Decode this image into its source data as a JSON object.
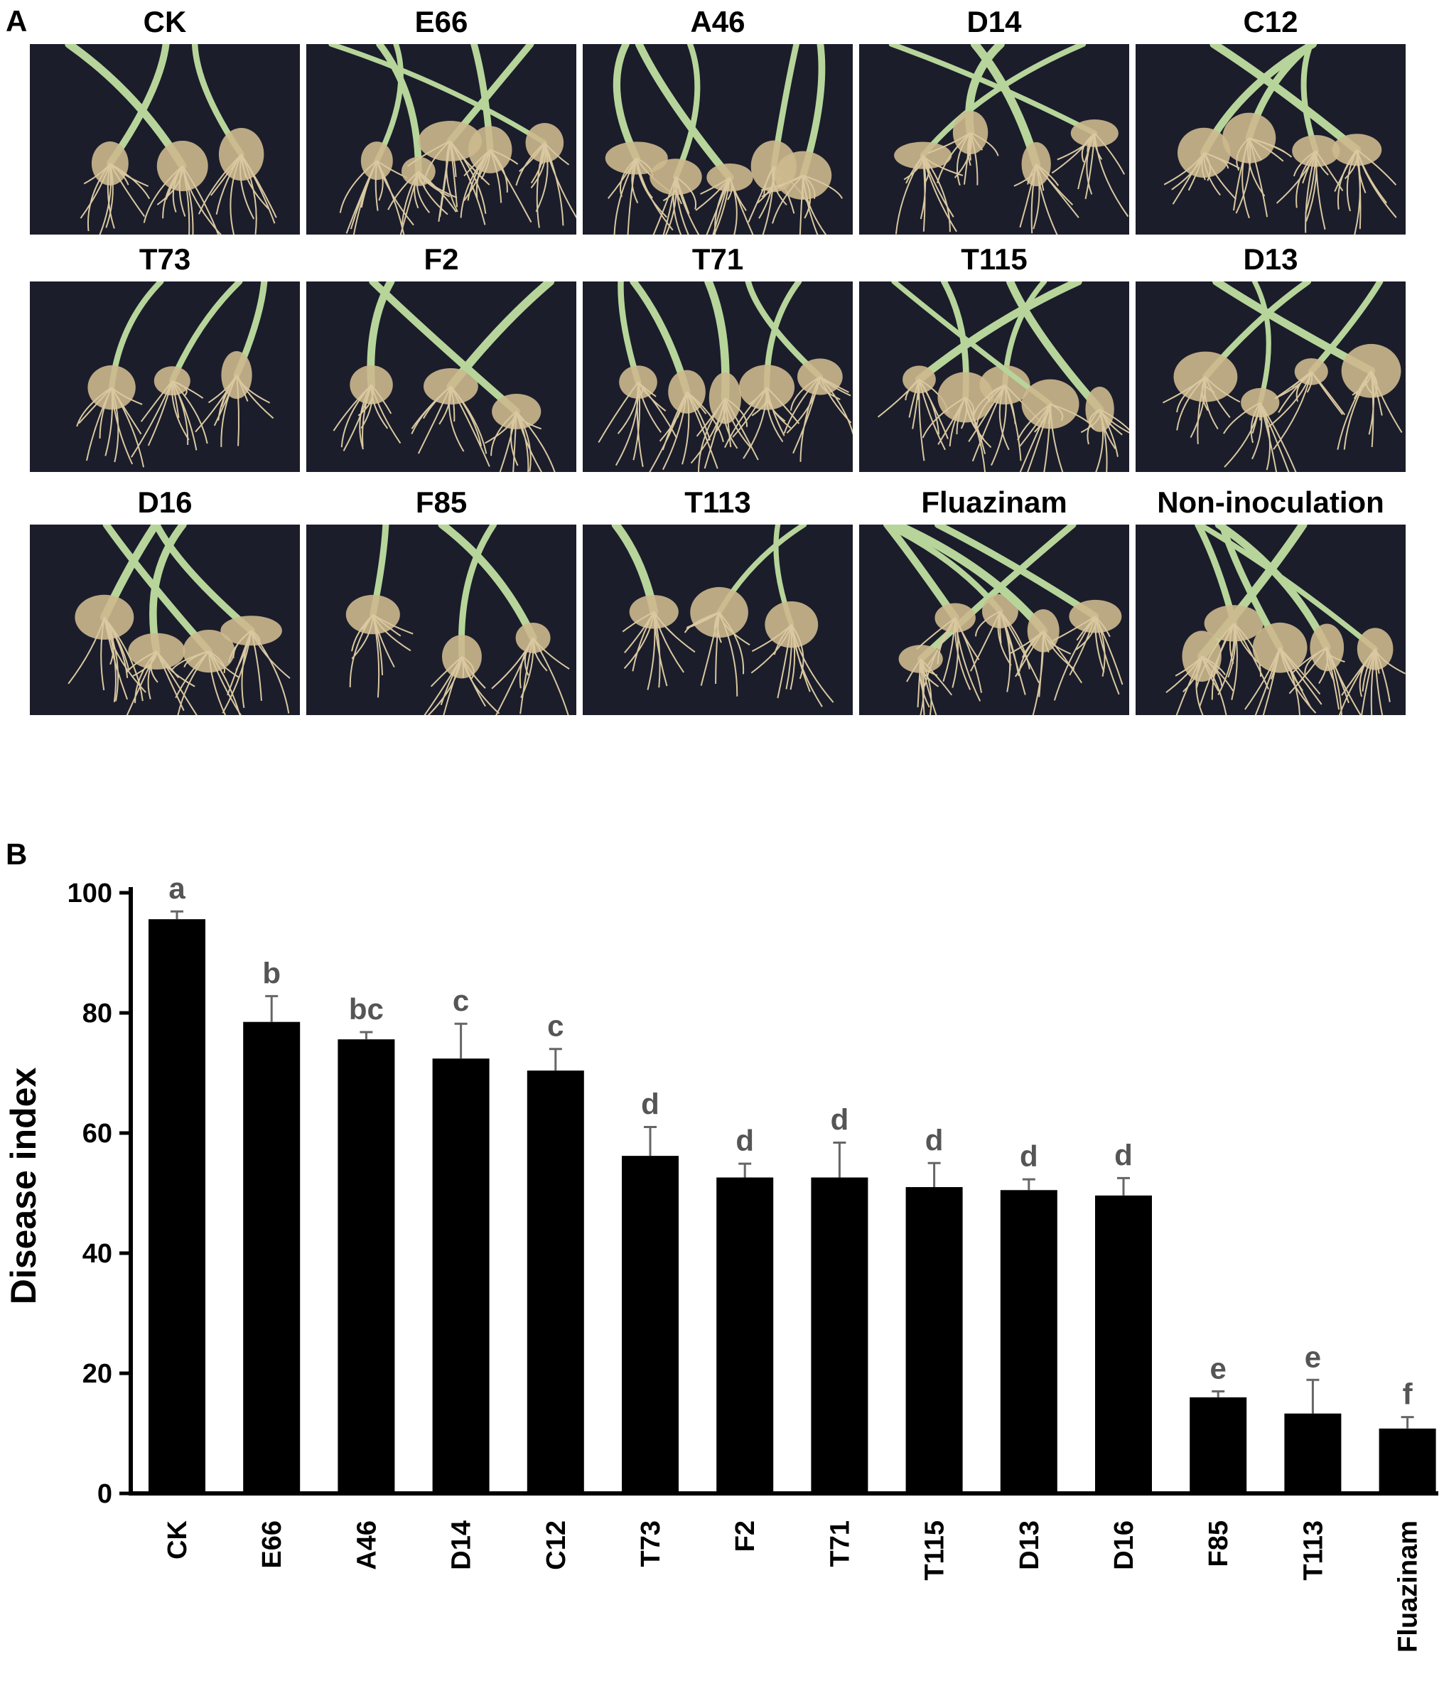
{
  "panel_a": {
    "letter": "A",
    "photos": [
      {
        "label": "CK"
      },
      {
        "label": "E66"
      },
      {
        "label": "A46"
      },
      {
        "label": "D14"
      },
      {
        "label": "C12"
      },
      {
        "label": "T73"
      },
      {
        "label": "F2"
      },
      {
        "label": "T71"
      },
      {
        "label": "T115"
      },
      {
        "label": "D13"
      },
      {
        "label": "D16"
      },
      {
        "label": "F85"
      },
      {
        "label": "T113"
      },
      {
        "label": "Fluazinam"
      },
      {
        "label": "Non-inoculation"
      }
    ]
  },
  "panel_b": {
    "letter": "B"
  },
  "chart_data": {
    "type": "bar",
    "title": "",
    "xlabel": "",
    "ylabel": "Disease index",
    "ylim": [
      0,
      100
    ],
    "yticks": [
      0,
      20,
      40,
      60,
      80,
      100
    ],
    "categories": [
      "CK",
      "E66",
      "A46",
      "D14",
      "C12",
      "T73",
      "F2",
      "T71",
      "T115",
      "D13",
      "D16",
      "F85",
      "T113",
      "Fluazinam"
    ],
    "values": [
      95.6,
      78.5,
      75.6,
      72.4,
      70.4,
      56.2,
      52.6,
      52.6,
      51.0,
      50.5,
      49.6,
      16.0,
      13.3,
      10.8
    ],
    "errors": [
      1.3,
      4.3,
      1.2,
      5.8,
      3.6,
      4.8,
      2.3,
      5.8,
      4.0,
      1.8,
      2.9,
      1.0,
      5.6,
      1.9
    ],
    "significance": [
      "a",
      "b",
      "bc",
      "c",
      "c",
      "d",
      "d",
      "d",
      "d",
      "d",
      "d",
      "e",
      "e",
      "f"
    ],
    "bar_color": "#000000",
    "grid": false,
    "legend": "none"
  }
}
